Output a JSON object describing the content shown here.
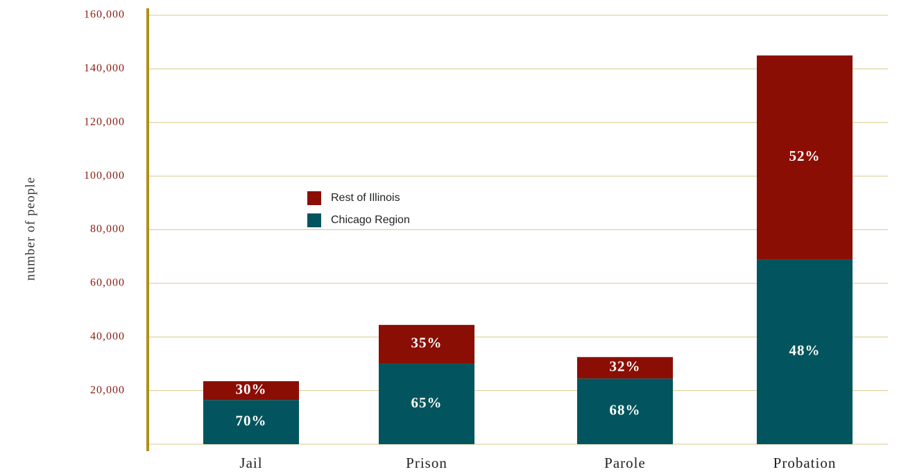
{
  "chart_data": {
    "type": "stacked-bar",
    "y_label": "number of people",
    "categories": [
      "Jail",
      "Prison",
      "Parole",
      "Probation"
    ],
    "series": [
      {
        "name": "Chicago Region",
        "color": "#02555e",
        "values": [
          16500,
          30000,
          24500,
          69000
        ],
        "value_labels": [
          "70%",
          "65%",
          "68%",
          "48%"
        ]
      },
      {
        "name": "Rest of Illinois",
        "color": "#8b0e04",
        "values": [
          7000,
          14500,
          8000,
          76000
        ],
        "value_labels": [
          "30%",
          "35%",
          "32%",
          "52%"
        ]
      }
    ],
    "ylim": [
      0,
      160000
    ],
    "yticks": [
      {
        "value": 20000,
        "label": "20,000"
      },
      {
        "value": 40000,
        "label": "40,000"
      },
      {
        "value": 60000,
        "label": "60,000"
      },
      {
        "value": 80000,
        "label": "80,000"
      },
      {
        "value": 100000,
        "label": "100,000"
      },
      {
        "value": 120000,
        "label": "120,000"
      },
      {
        "value": 140000,
        "label": "140,000"
      },
      {
        "value": 160000,
        "label": "160,000"
      }
    ],
    "grid": true
  }
}
